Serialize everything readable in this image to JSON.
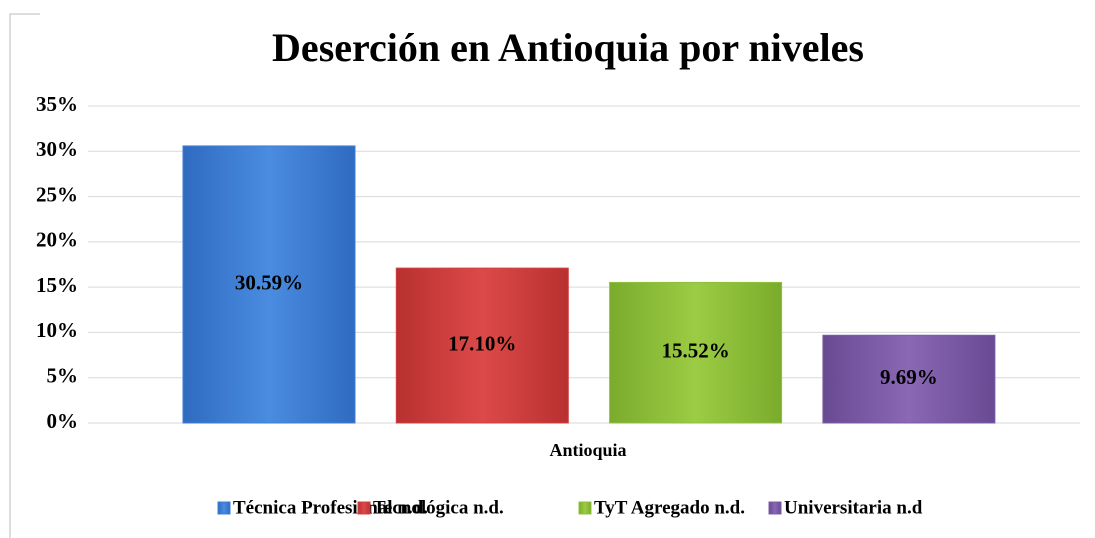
{
  "chart_data": {
    "type": "bar",
    "title": "Deserción en Antioquia por niveles",
    "categories": [
      "Antioquia"
    ],
    "series": [
      {
        "name": "Técnica Profesional n.d.",
        "color": "#3d7fd6",
        "values": [
          30.59
        ],
        "value_labels": [
          "30.59%"
        ]
      },
      {
        "name": "Tecnológica n.d.",
        "color": "#d04040",
        "values": [
          17.1
        ],
        "value_labels": [
          "17.10%"
        ]
      },
      {
        "name": "TyT Agregado n.d.",
        "color": "#8fc03a",
        "values": [
          15.52
        ],
        "value_labels": [
          "15.52%"
        ]
      },
      {
        "name": "Universitaria n.d",
        "color": "#7c5ca8",
        "values": [
          9.69
        ],
        "value_labels": [
          "9.69%"
        ]
      }
    ],
    "ylim": [
      0,
      35
    ],
    "yticks": [
      {
        "value": 0,
        "label": "0%"
      },
      {
        "value": 5,
        "label": "5%"
      },
      {
        "value": 10,
        "label": "10%"
      },
      {
        "value": 15,
        "label": "15%"
      },
      {
        "value": 20,
        "label": "20%"
      },
      {
        "value": 25,
        "label": "25%"
      },
      {
        "value": 30,
        "label": "30%"
      },
      {
        "value": 35,
        "label": "35%"
      }
    ],
    "grid": true,
    "legend": "bottom"
  }
}
